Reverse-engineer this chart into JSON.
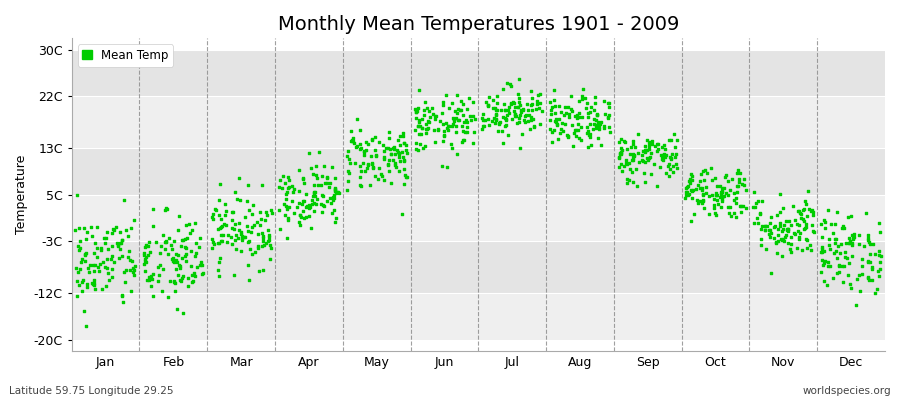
{
  "title": "Monthly Mean Temperatures 1901 - 2009",
  "ylabel": "Temperature",
  "subtitle_left": "Latitude 59.75 Longitude 29.25",
  "subtitle_right": "worldspecies.org",
  "years": 109,
  "dot_color": "#00CC00",
  "dot_size": 4,
  "background_color": "#FFFFFF",
  "plot_bg_color": "#FFFFFF",
  "band_color_light": "#EFEFEF",
  "band_color_dark": "#E4E4E4",
  "ytick_labels": [
    "-20C",
    "-12C",
    "-3C",
    "5C",
    "13C",
    "22C",
    "30C"
  ],
  "ytick_values": [
    -20,
    -12,
    -3,
    5,
    13,
    22,
    30
  ],
  "ylim": [
    -22,
    32
  ],
  "months": [
    "Jan",
    "Feb",
    "Mar",
    "Apr",
    "May",
    "Jun",
    "Jul",
    "Aug",
    "Sep",
    "Oct",
    "Nov",
    "Dec"
  ],
  "mean_temps": [
    -6.5,
    -6.5,
    -1.0,
    5.0,
    11.5,
    17.0,
    19.5,
    17.5,
    11.5,
    5.5,
    -0.5,
    -5.0
  ],
  "std_temps": [
    4.2,
    4.2,
    3.2,
    2.8,
    2.8,
    2.5,
    2.2,
    2.2,
    2.2,
    2.3,
    2.8,
    3.5
  ],
  "legend_label": "Mean Temp",
  "title_fontsize": 14,
  "axis_fontsize": 9,
  "legend_fontsize": 8.5
}
